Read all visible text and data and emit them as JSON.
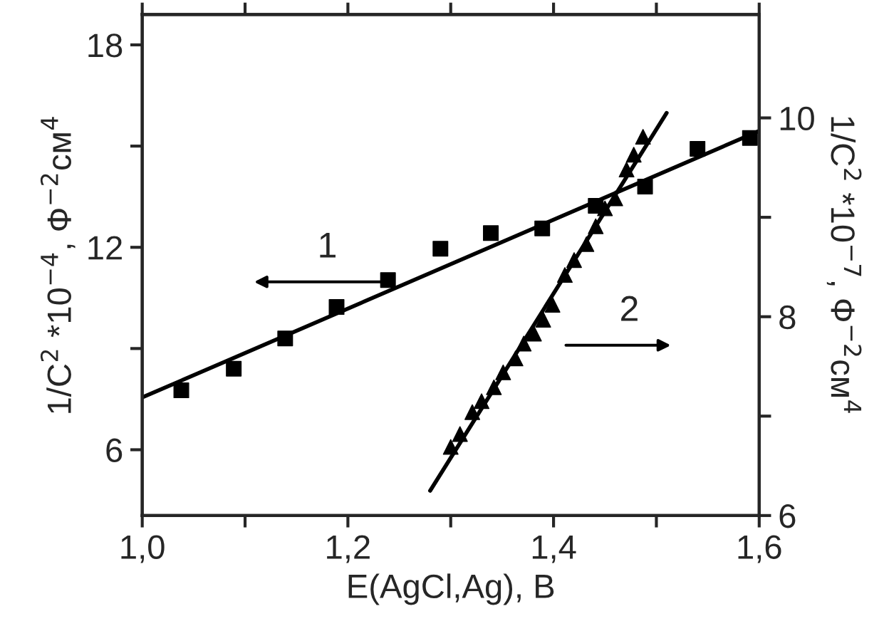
{
  "chart_data": {
    "type": "scatter",
    "xlabel": "E(AgCl,Ag), B",
    "ylabel": "1/C$^{2}$ *10$^{−4}$, Ф$^{−2}$см$^{4}$",
    "y2label": "1/C$^{2}$ *10$^{−7}$, Ф$^{−2}$см$^{4}$",
    "xlim": [
      1.0,
      1.6
    ],
    "xticks": [
      {
        "value": 1.0,
        "label": "1,0"
      },
      {
        "value": 1.1,
        "label": null
      },
      {
        "value": 1.2,
        "label": "1,2"
      },
      {
        "value": 1.3,
        "label": null
      },
      {
        "value": 1.4,
        "label": "1,4"
      },
      {
        "value": 1.5,
        "label": null
      },
      {
        "value": 1.6,
        "label": "1,6"
      }
    ],
    "ylim": [
      4.05,
      18.9
    ],
    "yticks": [
      6,
      {
        "value": 9,
        "label": null
      },
      12,
      {
        "value": 15,
        "label": null
      },
      18
    ],
    "y2lim": [
      6,
      11.04
    ],
    "y2ticks": [
      6,
      {
        "value": 7,
        "label": null
      },
      8,
      {
        "value": 9,
        "label": null
      },
      10
    ],
    "grid": false,
    "legend": false,
    "series": [
      {
        "marker": "square",
        "color": "#000000",
        "x": [
          1.038,
          1.089,
          1.139,
          1.189,
          1.239,
          1.29,
          1.339,
          1.389,
          1.441,
          1.489,
          1.54,
          1.591
        ],
        "values": [
          7.76,
          8.4,
          9.3,
          10.23,
          11.03,
          11.96,
          12.42,
          12.56,
          13.23,
          13.8,
          14.92,
          15.24
        ]
      },
      {
        "type": "line",
        "marker": "none",
        "line_style": "solid",
        "color": "#000000",
        "x": [
          1.0,
          1.6
        ],
        "values": [
          7.55,
          15.45
        ]
      },
      {
        "marker": "triangle",
        "axis": "y2",
        "color": "#000000",
        "x": [
          1.3,
          1.309,
          1.321,
          1.33,
          1.342,
          1.351,
          1.363,
          1.371,
          1.381,
          1.39,
          1.399,
          1.411,
          1.42,
          1.432,
          1.441,
          1.45,
          1.46,
          1.471,
          1.478,
          1.487
        ],
        "values": [
          6.69,
          6.82,
          7.04,
          7.15,
          7.29,
          7.44,
          7.58,
          7.73,
          7.83,
          7.97,
          8.12,
          8.42,
          8.57,
          8.73,
          8.91,
          9.09,
          9.19,
          9.48,
          9.63,
          9.81
        ]
      },
      {
        "type": "line",
        "marker": "none",
        "line_style": "solid",
        "axis": "y2",
        "color": "#000000",
        "x": [
          1.28,
          1.51
        ],
        "values": [
          6.25,
          10.05
        ]
      }
    ],
    "annotations": [
      "1",
      "2"
    ]
  }
}
